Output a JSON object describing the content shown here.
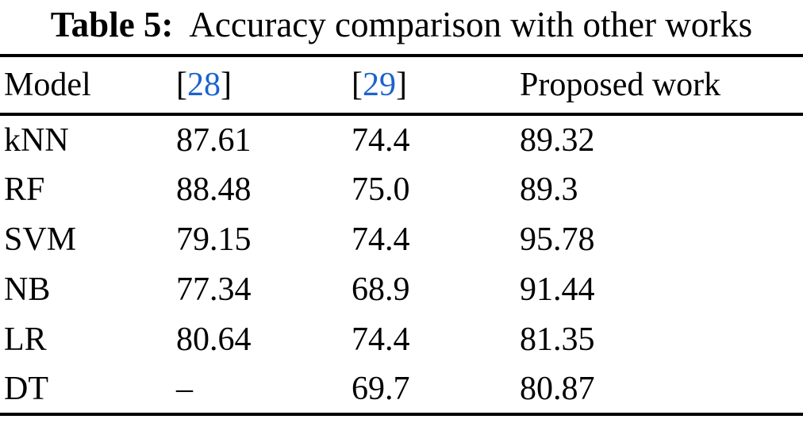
{
  "title": {
    "label": "Table 5:",
    "text": "Accuracy comparison with other works"
  },
  "columns": {
    "model": "Model",
    "ref1": {
      "open": "[",
      "num": "28",
      "close": "]"
    },
    "ref2": {
      "open": "[",
      "num": "29",
      "close": "]"
    },
    "proposed": "Proposed work"
  },
  "rows": [
    {
      "model": "kNN",
      "ref1": "87.61",
      "ref2": "74.4",
      "proposed": "89.32"
    },
    {
      "model": "RF",
      "ref1": "88.48",
      "ref2": "75.0",
      "proposed": "89.3"
    },
    {
      "model": "SVM",
      "ref1": "79.15",
      "ref2": "74.4",
      "proposed": "95.78"
    },
    {
      "model": "NB",
      "ref1": "77.34",
      "ref2": "68.9",
      "proposed": "91.44"
    },
    {
      "model": "LR",
      "ref1": "80.64",
      "ref2": "74.4",
      "proposed": "81.35"
    },
    {
      "model": "DT",
      "ref1": "–",
      "ref2": "69.7",
      "proposed": "80.87"
    }
  ],
  "colors": {
    "text": "#000000",
    "citation_link": "#1b63cb",
    "rule": "#000000",
    "background": "#ffffff"
  },
  "chart_data": {
    "type": "table",
    "title": "Table 5: Accuracy comparison with other works",
    "columns": [
      "Model",
      "[28]",
      "[29]",
      "Proposed work"
    ],
    "rows": [
      [
        "kNN",
        "87.61",
        "74.4",
        "89.32"
      ],
      [
        "RF",
        "88.48",
        "75.0",
        "89.3"
      ],
      [
        "SVM",
        "79.15",
        "74.4",
        "95.78"
      ],
      [
        "NB",
        "77.34",
        "68.9",
        "91.44"
      ],
      [
        "LR",
        "80.64",
        "74.4",
        "81.35"
      ],
      [
        "DT",
        "–",
        "69.7",
        "80.87"
      ]
    ]
  }
}
